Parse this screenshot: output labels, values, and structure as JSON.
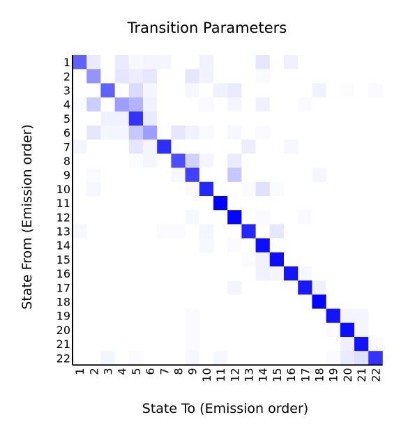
{
  "chart_data": {
    "type": "heatmap",
    "title": "Transition Parameters",
    "xlabel": "State To (Emission order)",
    "ylabel": "State From (Emission order)",
    "x_tick_labels": [
      "1",
      "2",
      "3",
      "4",
      "5",
      "6",
      "7",
      "8",
      "9",
      "10",
      "11",
      "12",
      "13",
      "14",
      "15",
      "16",
      "17",
      "18",
      "19",
      "20",
      "21",
      "22"
    ],
    "y_tick_labels": [
      "1",
      "2",
      "3",
      "4",
      "5",
      "6",
      "7",
      "8",
      "9",
      "10",
      "11",
      "12",
      "13",
      "14",
      "15",
      "16",
      "17",
      "18",
      "19",
      "20",
      "21",
      "22"
    ],
    "value_range": [
      0,
      1
    ],
    "colormap": {
      "low": "#ffffff",
      "high": "#0000ff"
    },
    "grid": false,
    "legend": "none",
    "values": [
      [
        0.62,
        0.08,
        0.0,
        0.08,
        0.03,
        0.04,
        0.04,
        0.0,
        0.0,
        0.05,
        0.0,
        0.0,
        0.0,
        0.1,
        0.0,
        0.06,
        0.0,
        0.0,
        0.0,
        0.0,
        0.0,
        0.0
      ],
      [
        0.0,
        0.42,
        0.0,
        0.1,
        0.07,
        0.1,
        0.0,
        0.0,
        0.1,
        0.05,
        0.0,
        0.0,
        0.0,
        0.02,
        0.0,
        0.0,
        0.0,
        0.0,
        0.0,
        0.0,
        0.0,
        0.0
      ],
      [
        0.0,
        0.0,
        0.62,
        0.0,
        0.14,
        0.04,
        0.0,
        0.0,
        0.03,
        0.0,
        0.06,
        0.08,
        0.0,
        0.0,
        0.0,
        0.0,
        0.0,
        0.05,
        0.0,
        0.01,
        0.0,
        0.02
      ],
      [
        0.02,
        0.2,
        0.0,
        0.38,
        0.3,
        0.05,
        0.0,
        0.0,
        0.0,
        0.02,
        0.0,
        0.04,
        0.0,
        0.06,
        0.0,
        0.0,
        0.02,
        0.0,
        0.0,
        0.0,
        0.0,
        0.0
      ],
      [
        0.0,
        0.0,
        0.06,
        0.06,
        0.8,
        0.08,
        0.0,
        0.0,
        0.0,
        0.0,
        0.0,
        0.0,
        0.0,
        0.0,
        0.0,
        0.0,
        0.0,
        0.0,
        0.0,
        0.0,
        0.0,
        0.0
      ],
      [
        0.0,
        0.1,
        0.04,
        0.04,
        0.22,
        0.38,
        0.0,
        0.1,
        0.05,
        0.02,
        0.0,
        0.03,
        0.0,
        0.02,
        0.0,
        0.0,
        0.0,
        0.0,
        0.0,
        0.0,
        0.0,
        0.0
      ],
      [
        0.04,
        0.0,
        0.0,
        0.0,
        0.1,
        0.04,
        0.82,
        0.0,
        0.0,
        0.0,
        0.0,
        0.0,
        0.07,
        0.0,
        0.0,
        0.03,
        0.0,
        0.0,
        0.0,
        0.0,
        0.0,
        0.0
      ],
      [
        0.0,
        0.0,
        0.0,
        0.0,
        0.02,
        0.04,
        0.0,
        0.7,
        0.18,
        0.04,
        0.0,
        0.08,
        0.0,
        0.0,
        0.0,
        0.0,
        0.0,
        0.0,
        0.0,
        0.0,
        0.0,
        0.0
      ],
      [
        0.0,
        0.02,
        0.0,
        0.0,
        0.0,
        0.0,
        0.0,
        0.03,
        0.75,
        0.0,
        0.0,
        0.22,
        0.0,
        0.0,
        0.0,
        0.0,
        0.0,
        0.04,
        0.0,
        0.0,
        0.0,
        0.0
      ],
      [
        0.0,
        0.03,
        0.0,
        0.0,
        0.0,
        0.0,
        0.0,
        0.0,
        0.02,
        0.85,
        0.0,
        0.0,
        0.02,
        0.12,
        0.02,
        0.0,
        0.0,
        0.0,
        0.0,
        0.0,
        0.0,
        0.0
      ],
      [
        0.0,
        0.0,
        0.0,
        0.0,
        0.0,
        0.0,
        0.0,
        0.0,
        0.0,
        0.0,
        1.0,
        0.0,
        0.0,
        0.0,
        0.0,
        0.0,
        0.0,
        0.0,
        0.0,
        0.0,
        0.0,
        0.0
      ],
      [
        0.0,
        0.0,
        0.0,
        0.0,
        0.0,
        0.0,
        0.0,
        0.0,
        0.03,
        0.0,
        0.0,
        0.98,
        0.0,
        0.02,
        0.0,
        0.0,
        0.02,
        0.0,
        0.0,
        0.0,
        0.0,
        0.0
      ],
      [
        0.03,
        0.0,
        0.0,
        0.0,
        0.0,
        0.0,
        0.02,
        0.02,
        0.0,
        0.04,
        0.0,
        0.0,
        0.85,
        0.0,
        0.1,
        0.0,
        0.0,
        0.0,
        0.0,
        0.0,
        0.0,
        0.0
      ],
      [
        0.0,
        0.0,
        0.0,
        0.0,
        0.0,
        0.0,
        0.0,
        0.0,
        0.0,
        0.03,
        0.0,
        0.02,
        0.0,
        0.95,
        0.0,
        0.0,
        0.0,
        0.0,
        0.0,
        0.0,
        0.0,
        0.0
      ],
      [
        0.0,
        0.0,
        0.0,
        0.0,
        0.0,
        0.0,
        0.0,
        0.0,
        0.0,
        0.0,
        0.0,
        0.0,
        0.02,
        0.05,
        0.95,
        0.0,
        0.0,
        0.0,
        0.0,
        0.0,
        0.0,
        0.0
      ],
      [
        0.0,
        0.0,
        0.0,
        0.0,
        0.0,
        0.0,
        0.0,
        0.0,
        0.0,
        0.0,
        0.0,
        0.0,
        0.0,
        0.06,
        0.04,
        0.92,
        0.03,
        0.0,
        0.0,
        0.0,
        0.0,
        0.0
      ],
      [
        0.0,
        0.0,
        0.0,
        0.0,
        0.0,
        0.0,
        0.0,
        0.0,
        0.0,
        0.0,
        0.0,
        0.04,
        0.0,
        0.0,
        0.0,
        0.0,
        0.9,
        0.06,
        0.0,
        0.0,
        0.0,
        0.0
      ],
      [
        0.0,
        0.0,
        0.0,
        0.0,
        0.0,
        0.0,
        0.0,
        0.0,
        0.0,
        0.0,
        0.0,
        0.0,
        0.0,
        0.0,
        0.0,
        0.0,
        0.0,
        0.98,
        0.0,
        0.0,
        0.0,
        0.0
      ],
      [
        0.0,
        0.0,
        0.0,
        0.0,
        0.0,
        0.0,
        0.0,
        0.0,
        0.02,
        0.0,
        0.0,
        0.0,
        0.0,
        0.0,
        0.0,
        0.0,
        0.0,
        0.0,
        0.92,
        0.04,
        0.04,
        0.0
      ],
      [
        0.0,
        0.0,
        0.0,
        0.0,
        0.0,
        0.0,
        0.0,
        0.0,
        0.02,
        0.0,
        0.0,
        0.0,
        0.0,
        0.0,
        0.0,
        0.0,
        0.0,
        0.0,
        0.02,
        0.95,
        0.04,
        0.0
      ],
      [
        0.0,
        0.0,
        0.0,
        0.0,
        0.0,
        0.0,
        0.0,
        0.0,
        0.02,
        0.0,
        0.0,
        0.0,
        0.0,
        0.0,
        0.0,
        0.0,
        0.0,
        0.0,
        0.0,
        0.06,
        0.92,
        0.02
      ],
      [
        0.0,
        0.0,
        0.04,
        0.0,
        0.02,
        0.0,
        0.0,
        0.0,
        0.03,
        0.0,
        0.03,
        0.0,
        0.0,
        0.0,
        0.0,
        0.0,
        0.0,
        0.0,
        0.02,
        0.08,
        0.12,
        0.8
      ]
    ]
  }
}
